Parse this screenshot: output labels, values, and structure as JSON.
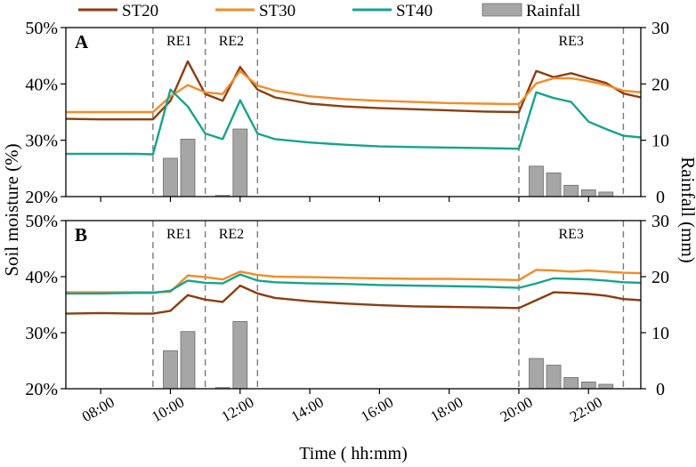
{
  "chart_data": {
    "type": "line",
    "legend": {
      "placement": "top",
      "entries": [
        {
          "name": "ST20",
          "kind": "line",
          "color": "#8B3E0F"
        },
        {
          "name": "ST30",
          "kind": "line",
          "color": "#F28C28"
        },
        {
          "name": "ST40",
          "kind": "line",
          "color": "#17A38E"
        },
        {
          "name": "Rainfall",
          "kind": "bar",
          "color": "#A6A6A6"
        }
      ]
    },
    "xlabel": "Time ( hh:mm)",
    "ylabel_left": "Soil moisture (%)",
    "ylabel_right": "Rainfall (mm)",
    "x_unit": "hours",
    "xlim": [
      7.0,
      23.5
    ],
    "x_ticks": [
      8,
      10,
      12,
      14,
      16,
      18,
      20,
      22
    ],
    "x_tick_labels": [
      "08:00",
      "10:00",
      "12:00",
      "14:00",
      "16:00",
      "18:00",
      "20:00",
      "22:00"
    ],
    "ylim_left": [
      20,
      50
    ],
    "y_ticks_left": [
      20,
      30,
      40,
      50
    ],
    "y_tick_labels_left": [
      "20%",
      "30%",
      "40%",
      "50%"
    ],
    "ylim_right": [
      0,
      30
    ],
    "y_ticks_right": [
      0,
      10,
      20,
      30
    ],
    "y_tick_labels_right": [
      "0",
      "10",
      "20",
      "30"
    ],
    "event_lines_x": [
      9.5,
      11.0,
      12.5,
      20.0,
      23.0
    ],
    "events": [
      {
        "label": "RE1",
        "x": 10.25
      },
      {
        "label": "RE2",
        "x": 11.75
      },
      {
        "label": "RE3",
        "x": 21.5
      }
    ],
    "rainfall": {
      "x": [
        10.0,
        10.5,
        11.5,
        12.0,
        20.5,
        21.0,
        21.5,
        22.0,
        22.5
      ],
      "values": [
        6.8,
        10.2,
        0.2,
        12.0,
        5.4,
        4.2,
        2.0,
        1.2,
        0.8
      ]
    },
    "panels": [
      {
        "label": "A",
        "series": [
          {
            "name": "ST20",
            "x": [
              7.0,
              8.0,
              9.0,
              9.5,
              10.0,
              10.5,
              11.0,
              11.5,
              12.0,
              12.5,
              13.0,
              14.0,
              15.0,
              16.0,
              17.0,
              18.0,
              19.0,
              20.0,
              20.5,
              21.0,
              21.5,
              22.0,
              22.5,
              23.0,
              23.5
            ],
            "values": [
              33.8,
              33.7,
              33.7,
              33.7,
              37.0,
              44.0,
              38.2,
              37.0,
              43.0,
              39.0,
              37.6,
              36.5,
              36.0,
              35.7,
              35.5,
              35.3,
              35.1,
              35.0,
              42.3,
              41.2,
              41.9,
              41.0,
              40.2,
              38.3,
              37.6
            ]
          },
          {
            "name": "ST30",
            "x": [
              7.0,
              8.0,
              9.0,
              9.5,
              10.0,
              10.5,
              11.0,
              11.5,
              12.0,
              12.5,
              13.0,
              14.0,
              15.0,
              16.0,
              17.0,
              18.0,
              19.0,
              20.0,
              20.5,
              21.0,
              21.5,
              22.0,
              22.5,
              23.0,
              23.5
            ],
            "values": [
              35.0,
              35.0,
              35.0,
              35.0,
              37.8,
              39.8,
              38.5,
              38.2,
              42.3,
              39.7,
              38.8,
              37.8,
              37.3,
              37.0,
              36.8,
              36.6,
              36.5,
              36.4,
              40.1,
              41.0,
              41.0,
              40.5,
              39.8,
              38.8,
              38.5
            ]
          },
          {
            "name": "ST40",
            "x": [
              7.0,
              8.0,
              9.0,
              9.5,
              10.0,
              10.5,
              11.0,
              11.5,
              12.0,
              12.5,
              13.0,
              14.0,
              15.0,
              16.0,
              17.0,
              18.0,
              19.0,
              20.0,
              20.5,
              21.0,
              21.5,
              22.0,
              22.5,
              23.0,
              23.5
            ],
            "values": [
              27.6,
              27.6,
              27.6,
              27.5,
              39.0,
              36.0,
              31.2,
              30.2,
              37.1,
              31.2,
              30.2,
              29.6,
              29.2,
              28.9,
              28.8,
              28.7,
              28.6,
              28.5,
              38.5,
              37.5,
              36.8,
              33.3,
              32.0,
              30.8,
              30.5
            ]
          }
        ]
      },
      {
        "label": "B",
        "series": [
          {
            "name": "ST20",
            "x": [
              7.0,
              8.0,
              9.0,
              9.5,
              10.0,
              10.5,
              11.0,
              11.5,
              12.0,
              12.5,
              13.0,
              14.0,
              15.0,
              16.0,
              17.0,
              18.0,
              19.0,
              20.0,
              20.5,
              21.0,
              21.5,
              22.0,
              22.5,
              23.0,
              23.5
            ],
            "values": [
              33.4,
              33.5,
              33.4,
              33.4,
              33.9,
              36.7,
              35.9,
              35.5,
              38.4,
              37.0,
              36.2,
              35.6,
              35.2,
              34.9,
              34.7,
              34.6,
              34.5,
              34.4,
              35.8,
              37.2,
              37.1,
              36.9,
              36.6,
              36.0,
              35.8
            ]
          },
          {
            "name": "ST30",
            "x": [
              7.0,
              8.0,
              9.0,
              9.5,
              10.0,
              10.5,
              11.0,
              11.5,
              12.0,
              12.5,
              13.0,
              14.0,
              15.0,
              16.0,
              17.0,
              18.0,
              19.0,
              20.0,
              20.5,
              21.0,
              21.5,
              22.0,
              22.5,
              23.0,
              23.5
            ],
            "values": [
              37.2,
              37.2,
              37.2,
              37.2,
              37.3,
              40.2,
              39.9,
              39.5,
              40.9,
              40.3,
              40.0,
              39.9,
              39.8,
              39.7,
              39.6,
              39.6,
              39.5,
              39.4,
              41.2,
              41.1,
              40.9,
              41.1,
              40.9,
              40.7,
              40.6
            ]
          },
          {
            "name": "ST40",
            "x": [
              7.0,
              8.0,
              9.0,
              9.5,
              10.0,
              10.5,
              11.0,
              11.5,
              12.0,
              12.5,
              13.0,
              14.0,
              15.0,
              16.0,
              17.0,
              18.0,
              19.0,
              20.0,
              20.5,
              21.0,
              21.5,
              22.0,
              22.5,
              23.0,
              23.5
            ],
            "values": [
              37.0,
              37.0,
              37.1,
              37.1,
              37.5,
              39.3,
              38.9,
              38.8,
              40.4,
              39.3,
              39.0,
              38.8,
              38.7,
              38.5,
              38.4,
              38.3,
              38.2,
              38.0,
              38.8,
              39.7,
              39.6,
              39.5,
              39.3,
              39.0,
              38.9
            ]
          }
        ]
      }
    ]
  }
}
